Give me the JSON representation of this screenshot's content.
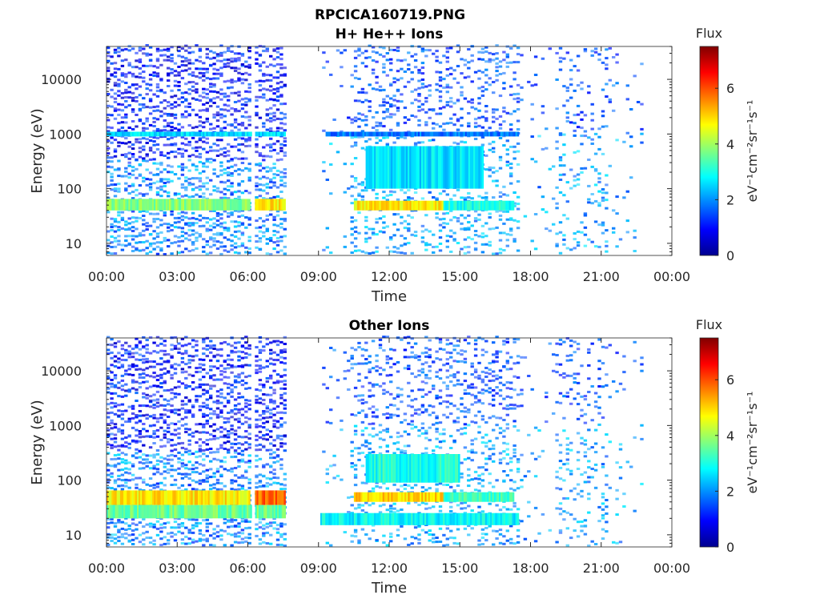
{
  "figure_title": "RPCICA160719.PNG",
  "chart_data": [
    {
      "type": "heatmap",
      "title": "H+ He++ Ions",
      "xlabel": "Time",
      "ylabel": "Energy (eV)",
      "x_ticks": [
        "00:00",
        "03:00",
        "06:00",
        "09:00",
        "12:00",
        "15:00",
        "18:00",
        "21:00",
        "00:00"
      ],
      "xlim_hours": [
        0,
        24
      ],
      "y_scale": "log",
      "ylim": [
        6,
        40000
      ],
      "y_ticks": [
        {
          "value": 10,
          "label": "10"
        },
        {
          "value": 100,
          "label": "100"
        },
        {
          "value": 1000,
          "label": "1000"
        },
        {
          "value": 10000,
          "label": "10000"
        }
      ],
      "colorbar": {
        "label": "Flux",
        "units_label": "eV⁻¹cm⁻²sr⁻¹s⁻¹",
        "min": 0,
        "max": 7.5,
        "ticks": [
          "0",
          "2",
          "4",
          "6"
        ],
        "colormap": "jet"
      },
      "data_gaps_hours": [
        [
          6.15,
          6.3
        ],
        [
          7.7,
          9.1
        ]
      ],
      "bands": [
        {
          "t": [
            0,
            6.1
          ],
          "e": [
            40,
            65
          ],
          "level": 3.8
        },
        {
          "t": [
            6.3,
            7.6
          ],
          "e": [
            40,
            65
          ],
          "level": 4.8
        },
        {
          "t": [
            0,
            7.6
          ],
          "e": [
            900,
            1100
          ],
          "level": 2.6
        },
        {
          "t": [
            10.5,
            14.3
          ],
          "e": [
            40,
            60
          ],
          "level": 4.8
        },
        {
          "t": [
            14.3,
            17.3
          ],
          "e": [
            40,
            60
          ],
          "level": 3.0
        },
        {
          "t": [
            11.0,
            16.0
          ],
          "e": [
            100,
            600
          ],
          "level": 2.6
        },
        {
          "t": [
            9.3,
            17.5
          ],
          "e": [
            900,
            1100
          ],
          "level": 1.8
        }
      ]
    },
    {
      "type": "heatmap",
      "title": "Other Ions",
      "xlabel": "Time",
      "ylabel": "Energy (eV)",
      "x_ticks": [
        "00:00",
        "03:00",
        "06:00",
        "09:00",
        "12:00",
        "15:00",
        "18:00",
        "21:00",
        "00:00"
      ],
      "xlim_hours": [
        0,
        24
      ],
      "y_scale": "log",
      "ylim": [
        6,
        40000
      ],
      "y_ticks": [
        {
          "value": 10,
          "label": "10"
        },
        {
          "value": 100,
          "label": "100"
        },
        {
          "value": 1000,
          "label": "1000"
        },
        {
          "value": 10000,
          "label": "10000"
        }
      ],
      "colorbar": {
        "label": "Flux",
        "units_label": "eV⁻¹cm⁻²sr⁻¹s⁻¹",
        "min": 0,
        "max": 7.5,
        "ticks": [
          "0",
          "2",
          "4",
          "6"
        ],
        "colormap": "jet"
      },
      "data_gaps_hours": [
        [
          6.15,
          6.3
        ],
        [
          7.7,
          9.1
        ]
      ],
      "bands": [
        {
          "t": [
            0,
            6.1
          ],
          "e": [
            35,
            65
          ],
          "level": 4.8
        },
        {
          "t": [
            6.3,
            7.6
          ],
          "e": [
            35,
            65
          ],
          "level": 5.8
        },
        {
          "t": [
            0,
            7.6
          ],
          "e": [
            20,
            35
          ],
          "level": 3.6
        },
        {
          "t": [
            10.5,
            14.3
          ],
          "e": [
            40,
            60
          ],
          "level": 5.0
        },
        {
          "t": [
            14.3,
            17.3
          ],
          "e": [
            40,
            60
          ],
          "level": 3.3
        },
        {
          "t": [
            11.0,
            15.0
          ],
          "e": [
            90,
            300
          ],
          "level": 3.0
        },
        {
          "t": [
            9.0,
            17.5
          ],
          "e": [
            15,
            25
          ],
          "level": 2.8
        }
      ]
    }
  ]
}
